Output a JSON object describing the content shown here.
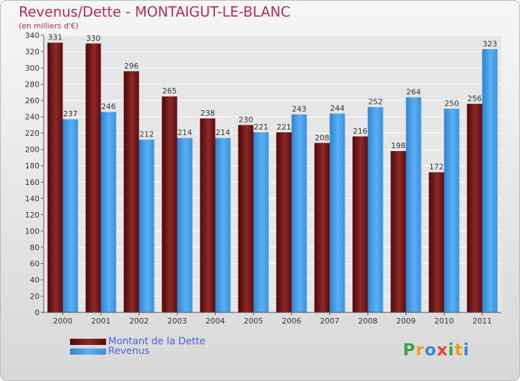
{
  "chart_data": {
    "type": "bar",
    "title": "Revenus/Dette - MONTAIGUT-LE-BLANC",
    "subtitle": "(en milliers d'€)",
    "categories": [
      "2000",
      "2001",
      "2002",
      "2003",
      "2004",
      "2005",
      "2006",
      "2007",
      "2008",
      "2009",
      "2010",
      "2011"
    ],
    "series": [
      {
        "name": "Montant de la Dette",
        "color": "#7a1b1b",
        "values": [
          331,
          330,
          296,
          265,
          238,
          230,
          221,
          208,
          216,
          198,
          172,
          256
        ]
      },
      {
        "name": "Revenus",
        "color": "#3f9ae6",
        "values": [
          237,
          246,
          212,
          214,
          214,
          221,
          243,
          244,
          252,
          264,
          250,
          323
        ]
      }
    ],
    "ylim": [
      0,
      340
    ],
    "yticks": [
      0,
      20,
      40,
      60,
      80,
      100,
      120,
      140,
      160,
      180,
      200,
      220,
      240,
      260,
      280,
      300,
      320,
      340
    ],
    "grid": true,
    "legend_position": "bottom-left"
  },
  "logo": {
    "letters": [
      "P",
      "r",
      "o",
      "x",
      "i",
      "t",
      "i"
    ],
    "colors": [
      "#3da63b",
      "#f29b1d",
      "#3a86d8",
      "#e8432f",
      "#3da63b",
      "#f29b1d",
      "#3a86d8"
    ]
  }
}
